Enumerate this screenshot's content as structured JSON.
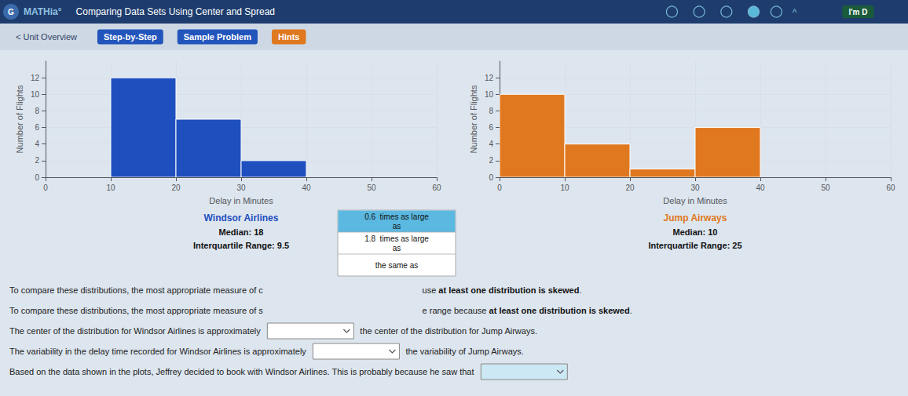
{
  "title": "Comparing Data Sets Using Center and Spread",
  "annotations": [
    [
      "G",
      "MATHia°",
      "^",
      "I'm D"
    ],
    [
      "< Unit Overview",
      "Step-by-Step",
      "Sample Problem",
      "Hints"
    ],
    [
      "0.6  times as large\nas",
      "1.8  times as large\nas",
      "the same as"
    ],
    [
      "To compare these distributions, the most appropriate measure of c",
      "use ",
      "at least one distribution is skewed",
      "."
    ],
    [
      "To compare these distributions, the most appropriate measure of s",
      "e range because ",
      "at least one distribution is skewed",
      "."
    ],
    [
      "The center of the distribution for Windsor Airlines is approximately",
      "the center of the distribution for Jump Airways."
    ],
    [
      "The variability in the delay time recorded for Windsor Airlines is approximately",
      "the variability of Jump Airways."
    ],
    [
      "Based on the data shown in the plots, Jeffrey decided to book with Windsor Airlines. This is probably because he saw that"
    ]
  ],
  "chart_data": [
    {
      "type": "histogram",
      "title": "Windsor Airlines",
      "bins": [
        10,
        20,
        30,
        40
      ],
      "values": [
        12,
        7,
        2
      ],
      "color": "#1f4fbf",
      "xlabel": "Delay in Minutes",
      "ylabel": "Number of Flights",
      "xlim": [
        0,
        60
      ],
      "ylim": [
        0,
        14
      ],
      "xticks": [
        0,
        10,
        20,
        30,
        40,
        50,
        60
      ],
      "yticks": [
        0,
        2,
        4,
        6,
        8,
        10,
        12
      ],
      "grid": true,
      "annotations": [
        "Median: 18",
        "Interquartile Range: 9.5"
      ]
    },
    {
      "type": "histogram",
      "title": "Jump Airways",
      "bins": [
        0,
        10,
        20,
        30,
        40
      ],
      "values": [
        10,
        4,
        1,
        6
      ],
      "color": "#e07820",
      "xlabel": "Delay in Minutes",
      "ylabel": "Number of Flights",
      "xlim": [
        0,
        60
      ],
      "ylim": [
        0,
        14
      ],
      "xticks": [
        0,
        10,
        20,
        30,
        40,
        50,
        60
      ],
      "yticks": [
        0,
        2,
        4,
        6,
        8,
        10,
        12
      ],
      "grid": true,
      "annotations": [
        "Median: 10",
        "Interquartile Range: 25"
      ]
    }
  ]
}
